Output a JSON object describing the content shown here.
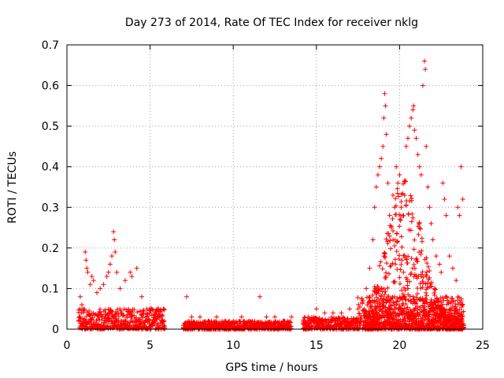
{
  "chart_data": {
    "type": "scatter",
    "title": "Day 273 of 2014, Rate Of TEC Index for receiver nklg",
    "xlabel": "GPS time / hours",
    "ylabel": "ROTI / TECUs",
    "xlim": [
      0,
      25
    ],
    "ylim": [
      0,
      0.7
    ],
    "x_ticks": [
      0,
      5,
      10,
      15,
      20,
      25
    ],
    "y_ticks": [
      0,
      0.1,
      0.2,
      0.3,
      0.4,
      0.5,
      0.6,
      0.7
    ],
    "x_tick_labels": [
      "0",
      "5",
      "10",
      "15",
      "20",
      "25"
    ],
    "y_tick_labels": [
      "0",
      "0.1",
      "0.2",
      "0.3",
      "0.4",
      "0.5",
      "0.6",
      "0.7"
    ],
    "grid": true,
    "marker": "+",
    "marker_color": "#ff0000",
    "series": [
      {
        "name": "nklg",
        "points": [
          [
            0.8,
            0.08
          ],
          [
            0.9,
            0.06
          ],
          [
            1.0,
            0.05
          ],
          [
            1.1,
            0.19
          ],
          [
            1.15,
            0.17
          ],
          [
            1.2,
            0.15
          ],
          [
            1.25,
            0.14
          ],
          [
            1.4,
            0.11
          ],
          [
            1.5,
            0.13
          ],
          [
            1.6,
            0.12
          ],
          [
            1.8,
            0.09
          ],
          [
            2.0,
            0.1
          ],
          [
            2.2,
            0.11
          ],
          [
            2.4,
            0.13
          ],
          [
            2.5,
            0.14
          ],
          [
            2.6,
            0.16
          ],
          [
            2.7,
            0.18
          ],
          [
            2.8,
            0.24
          ],
          [
            2.85,
            0.22
          ],
          [
            2.9,
            0.19
          ],
          [
            3.0,
            0.14
          ],
          [
            3.2,
            0.1
          ],
          [
            3.5,
            0.12
          ],
          [
            3.8,
            0.14
          ],
          [
            3.9,
            0.13
          ],
          [
            4.2,
            0.15
          ],
          [
            4.5,
            0.08
          ],
          [
            4.8,
            0.05
          ],
          [
            5.0,
            0.04
          ],
          [
            5.5,
            0.05
          ],
          [
            5.8,
            0.05
          ],
          [
            7.2,
            0.08
          ],
          [
            7.5,
            0.03
          ],
          [
            8.0,
            0.03
          ],
          [
            8.5,
            0.02
          ],
          [
            9.0,
            0.03
          ],
          [
            9.5,
            0.02
          ],
          [
            10.0,
            0.02
          ],
          [
            10.5,
            0.03
          ],
          [
            11.0,
            0.02
          ],
          [
            11.6,
            0.08
          ],
          [
            12.0,
            0.03
          ],
          [
            12.5,
            0.03
          ],
          [
            13.0,
            0.02
          ],
          [
            13.5,
            0.03
          ],
          [
            14.5,
            0.03
          ],
          [
            15.0,
            0.05
          ],
          [
            15.5,
            0.04
          ],
          [
            16.0,
            0.04
          ],
          [
            16.5,
            0.04
          ],
          [
            17.0,
            0.05
          ],
          [
            17.5,
            0.05
          ],
          [
            17.8,
            0.07
          ],
          [
            18.0,
            0.1
          ],
          [
            18.2,
            0.15
          ],
          [
            18.4,
            0.22
          ],
          [
            18.5,
            0.3
          ],
          [
            18.6,
            0.35
          ],
          [
            18.7,
            0.38
          ],
          [
            18.8,
            0.4
          ],
          [
            18.9,
            0.42
          ],
          [
            19.0,
            0.45
          ],
          [
            19.05,
            0.52
          ],
          [
            19.1,
            0.58
          ],
          [
            19.15,
            0.55
          ],
          [
            19.2,
            0.48
          ],
          [
            19.3,
            0.36
          ],
          [
            19.4,
            0.28
          ],
          [
            19.5,
            0.25
          ],
          [
            19.6,
            0.33
          ],
          [
            19.7,
            0.3
          ],
          [
            19.8,
            0.4
          ],
          [
            19.9,
            0.36
          ],
          [
            20.0,
            0.38
          ],
          [
            20.1,
            0.3
          ],
          [
            20.2,
            0.28
          ],
          [
            20.3,
            0.33
          ],
          [
            20.4,
            0.45
          ],
          [
            20.5,
            0.47
          ],
          [
            20.6,
            0.5
          ],
          [
            20.7,
            0.52
          ],
          [
            20.8,
            0.54
          ],
          [
            20.85,
            0.55
          ],
          [
            20.9,
            0.49
          ],
          [
            21.0,
            0.47
          ],
          [
            21.1,
            0.43
          ],
          [
            21.2,
            0.4
          ],
          [
            21.3,
            0.38
          ],
          [
            21.4,
            0.6
          ],
          [
            21.5,
            0.66
          ],
          [
            21.55,
            0.64
          ],
          [
            21.6,
            0.45
          ],
          [
            21.7,
            0.35
          ],
          [
            21.8,
            0.3
          ],
          [
            21.9,
            0.26
          ],
          [
            22.0,
            0.22
          ],
          [
            22.2,
            0.18
          ],
          [
            22.4,
            0.16
          ],
          [
            22.5,
            0.14
          ],
          [
            22.6,
            0.36
          ],
          [
            22.7,
            0.32
          ],
          [
            22.8,
            0.28
          ],
          [
            23.0,
            0.18
          ],
          [
            23.2,
            0.15
          ],
          [
            23.4,
            0.12
          ],
          [
            23.5,
            0.3
          ],
          [
            23.6,
            0.28
          ],
          [
            23.7,
            0.4
          ],
          [
            23.8,
            0.32
          ]
        ],
        "baseline_segments": [
          {
            "start": 0.7,
            "end": 5.9,
            "upper": 0.05
          },
          {
            "start": 7.0,
            "end": 13.5,
            "upper": 0.02
          },
          {
            "start": 14.2,
            "end": 17.5,
            "upper": 0.03
          },
          {
            "start": 17.5,
            "end": 23.9,
            "upper": 0.08
          }
        ]
      }
    ]
  }
}
